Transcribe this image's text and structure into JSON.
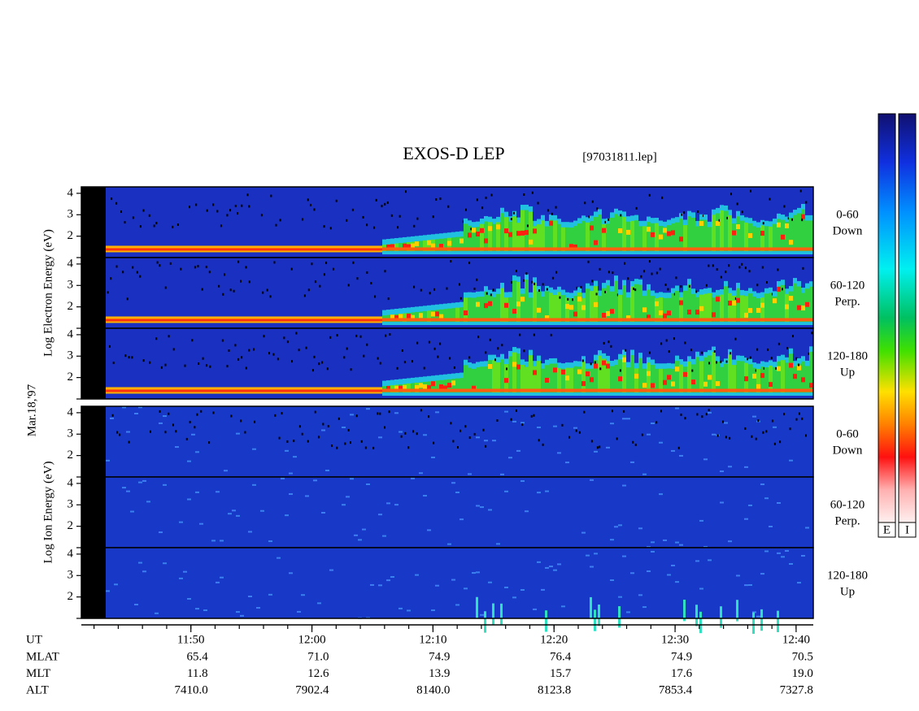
{
  "chart_data": {
    "type": "spectrogram",
    "title": "EXOS-D LEP",
    "file": "[97031811.lep]",
    "date": "Mar.18,'97",
    "xlabel": "UT",
    "xlim": [
      "11:40:57",
      "12:41:25"
    ],
    "xticks": [
      "11:50",
      "12:00",
      "12:10",
      "12:20",
      "12:30",
      "12:40"
    ],
    "groups": [
      {
        "ylabel": "Log Electron Energy (eV)",
        "ylim": [
          1,
          4.3
        ],
        "yticks": [
          2,
          3,
          4
        ],
        "panels": [
          [
            "0-60",
            "Down"
          ],
          [
            "60-120",
            "Perp."
          ],
          [
            "120-180",
            "Up"
          ]
        ]
      },
      {
        "ylabel": "Log Ion Energy (eV)",
        "ylim": [
          1,
          4.3
        ],
        "yticks": [
          2,
          3,
          4
        ],
        "panels": [
          [
            "0-60",
            "Down"
          ],
          [
            "60-120",
            "Perp."
          ],
          [
            "120-180",
            "Up"
          ]
        ]
      }
    ],
    "ephemeris": [
      {
        "name": "MLAT",
        "values": [
          "65.4",
          "71.0",
          "74.9",
          "76.4",
          "74.9",
          "70.5"
        ]
      },
      {
        "name": "MLT",
        "values": [
          "11.8",
          "12.6",
          "13.9",
          "15.7",
          "17.6",
          "19.0"
        ]
      },
      {
        "name": "ALT",
        "values": [
          "7410.0",
          "7902.4",
          "8140.0",
          "8123.8",
          "7853.4",
          "7327.8"
        ]
      }
    ],
    "colorbars": [
      "E",
      "I"
    ]
  }
}
